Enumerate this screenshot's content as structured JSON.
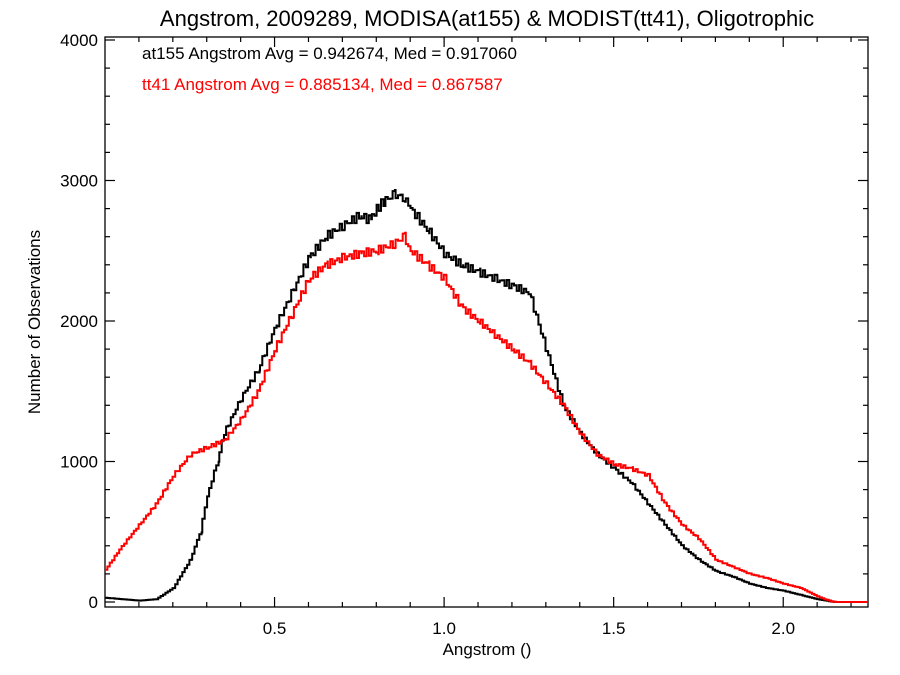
{
  "chart_data": {
    "type": "line",
    "title": "Angstrom, 2009289, MODISA(at155) & MODIST(tt41), Oligotrophic",
    "xlabel": "Angstrom ()",
    "ylabel": "Number of Observations",
    "xlim": [
      0.0,
      2.25
    ],
    "ylim": [
      0,
      4000
    ],
    "x_ticks": [
      0.5,
      1.0,
      1.5,
      2.0
    ],
    "x_tick_labels": [
      "0.5",
      "1.0",
      "1.5",
      "2.0"
    ],
    "y_ticks": [
      0,
      1000,
      2000,
      3000,
      4000
    ],
    "y_tick_labels": [
      "0",
      "1000",
      "2000",
      "3000",
      "4000"
    ],
    "grid": false,
    "legend_position": "top-left",
    "series": [
      {
        "name": "at155",
        "label": "at155 Angstrom Avg = 0.942674, Med = 0.917060",
        "color": "#000000",
        "x": [
          0.0,
          0.05,
          0.1,
          0.15,
          0.2,
          0.25,
          0.28,
          0.3,
          0.33,
          0.35,
          0.4,
          0.45,
          0.5,
          0.55,
          0.6,
          0.65,
          0.7,
          0.75,
          0.78,
          0.8,
          0.82,
          0.85,
          0.88,
          0.9,
          0.95,
          1.0,
          1.05,
          1.1,
          1.15,
          1.2,
          1.25,
          1.3,
          1.35,
          1.4,
          1.45,
          1.5,
          1.55,
          1.6,
          1.65,
          1.7,
          1.75,
          1.8,
          1.85,
          1.9,
          1.95,
          2.0,
          2.05,
          2.1,
          2.15,
          2.2,
          2.25
        ],
        "y": [
          30,
          20,
          10,
          20,
          100,
          300,
          500,
          750,
          1000,
          1200,
          1450,
          1650,
          1950,
          2200,
          2450,
          2600,
          2680,
          2750,
          2720,
          2800,
          2850,
          2900,
          2880,
          2800,
          2650,
          2480,
          2400,
          2350,
          2300,
          2250,
          2200,
          1800,
          1400,
          1200,
          1050,
          950,
          850,
          700,
          550,
          400,
          300,
          220,
          180,
          130,
          100,
          80,
          50,
          20,
          0,
          0,
          0
        ]
      },
      {
        "name": "tt41",
        "label": "tt41 Angstrom Avg = 0.885134, Med = 0.867587",
        "color": "#ff0000",
        "x": [
          0.0,
          0.05,
          0.1,
          0.15,
          0.2,
          0.25,
          0.3,
          0.35,
          0.4,
          0.45,
          0.5,
          0.55,
          0.6,
          0.65,
          0.7,
          0.75,
          0.8,
          0.85,
          0.88,
          0.9,
          0.95,
          1.0,
          1.05,
          1.1,
          1.15,
          1.2,
          1.25,
          1.3,
          1.35,
          1.4,
          1.45,
          1.5,
          1.55,
          1.6,
          1.65,
          1.7,
          1.75,
          1.8,
          1.85,
          1.9,
          1.95,
          2.0,
          2.05,
          2.1,
          2.12,
          2.15,
          2.2,
          2.25
        ],
        "y": [
          230,
          400,
          550,
          700,
          900,
          1050,
          1100,
          1150,
          1300,
          1500,
          1800,
          2050,
          2300,
          2400,
          2450,
          2480,
          2500,
          2550,
          2600,
          2500,
          2400,
          2300,
          2100,
          2000,
          1900,
          1800,
          1700,
          1550,
          1400,
          1200,
          1050,
          980,
          950,
          900,
          700,
          550,
          450,
          300,
          250,
          200,
          170,
          130,
          100,
          40,
          20,
          0,
          0,
          0
        ]
      }
    ]
  }
}
